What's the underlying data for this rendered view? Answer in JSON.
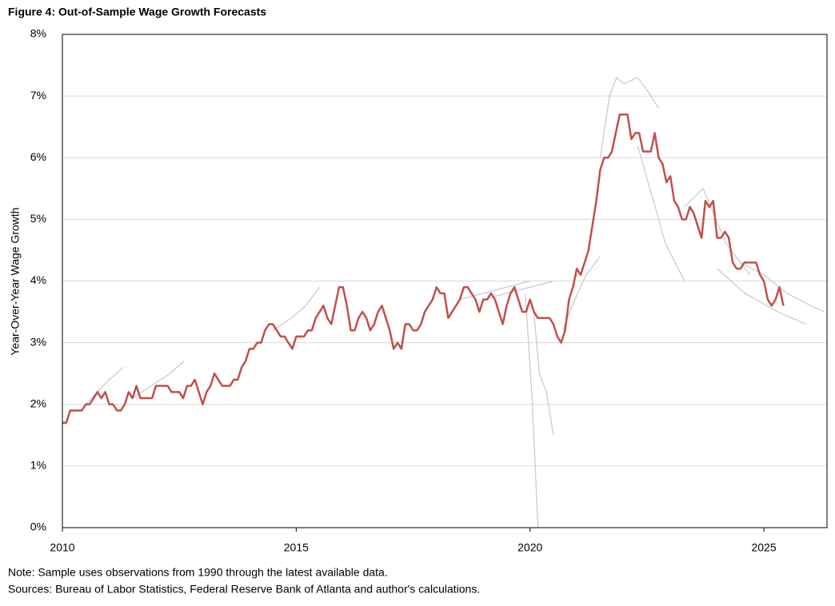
{
  "chart_data": {
    "type": "line",
    "title": "Figure 4: Out-of-Sample Wage Growth Forecasts",
    "y_label": "Year-Over-Year Wage Growth",
    "notes": [
      "Note: Sample uses observations from 1990 through the latest available data.",
      "Sources: Bureau of Labor Statistics, Federal Reserve Bank of Atlanta and author's calculations."
    ],
    "xlim": [
      2010,
      2026.35
    ],
    "xticks": [
      2010,
      2015,
      2020,
      2025
    ],
    "ylim": [
      0,
      8
    ],
    "yticks": [
      {
        "value": 0,
        "label": "0%"
      },
      {
        "value": 1,
        "label": "1%"
      },
      {
        "value": 2,
        "label": "2%"
      },
      {
        "value": 3,
        "label": "3%"
      },
      {
        "value": 4,
        "label": "4%"
      },
      {
        "value": 5,
        "label": "5%"
      },
      {
        "value": 6,
        "label": "6%"
      },
      {
        "value": 7,
        "label": "7%"
      },
      {
        "value": 8,
        "label": "8%"
      }
    ],
    "grid": true,
    "series": [
      {
        "color": "#c8c8c8",
        "x": [
          2010.5,
          2010.75,
          2011.0,
          2011.3
        ],
        "values": [
          2.0,
          2.2,
          2.4,
          2.6
        ]
      },
      {
        "color": "#c8c8c8",
        "x": [
          2011.5,
          2011.9,
          2012.3,
          2012.6
        ],
        "values": [
          2.1,
          2.3,
          2.5,
          2.7
        ]
      },
      {
        "color": "#c8c8c8",
        "x": [
          2014.5,
          2014.9,
          2015.2,
          2015.5
        ],
        "values": [
          3.2,
          3.4,
          3.6,
          3.9
        ]
      },
      {
        "color": "#c8c8c8",
        "x": [
          2018.5,
          2019.0,
          2019.5,
          2020.0
        ],
        "values": [
          3.7,
          3.8,
          3.9,
          4.0
        ]
      },
      {
        "color": "#c8c8c8",
        "x": [
          2019.0,
          2019.5,
          2020.0,
          2020.5
        ],
        "values": [
          3.7,
          3.8,
          3.9,
          4.0
        ]
      },
      {
        "color": "#c8c8c8",
        "x": [
          2019.9,
          2020.05,
          2020.17
        ],
        "values": [
          3.8,
          2.0,
          0
        ]
      },
      {
        "color": "#c8c8c8",
        "x": [
          2020.08,
          2020.2,
          2020.35,
          2020.5
        ],
        "values": [
          3.5,
          2.5,
          2.2,
          1.5
        ]
      },
      {
        "color": "#c8c8c8",
        "x": [
          2020.7,
          2020.9,
          2021.2,
          2021.5
        ],
        "values": [
          3.2,
          3.6,
          4.1,
          4.4
        ]
      },
      {
        "color": "#c8c8c8",
        "x": [
          2021.5,
          2021.7,
          2021.85,
          2022.0,
          2022.3,
          2022.5,
          2022.75
        ],
        "values": [
          6.0,
          7.0,
          7.3,
          7.2,
          7.3,
          7.1,
          6.8
        ]
      },
      {
        "color": "#c8c8c8",
        "x": [
          2022.3,
          2022.6,
          2022.9,
          2023.3
        ],
        "values": [
          6.2,
          5.4,
          4.6,
          4.0
        ]
      },
      {
        "color": "#c8c8c8",
        "x": [
          2023.3,
          2023.7,
          2024.2,
          2024.7
        ],
        "values": [
          5.2,
          5.5,
          4.6,
          4.1
        ]
      },
      {
        "color": "#c8c8c8",
        "x": [
          2024.5,
          2025.0,
          2025.5,
          2026.0,
          2026.3
        ],
        "values": [
          4.3,
          4.1,
          3.8,
          3.6,
          3.5
        ]
      },
      {
        "color": "#c8c8c8",
        "x": [
          2024.0,
          2024.6,
          2025.3,
          2025.9
        ],
        "values": [
          4.2,
          3.8,
          3.5,
          3.3
        ]
      },
      {
        "color": "#c0504d",
        "x": [
          2010,
          2010.083,
          2010.167,
          2010.25,
          2010.333,
          2010.417,
          2010.5,
          2010.583,
          2010.667,
          2010.75,
          2010.833,
          2010.917,
          2011,
          2011.083,
          2011.167,
          2011.25,
          2011.333,
          2011.417,
          2011.5,
          2011.583,
          2011.667,
          2011.75,
          2011.833,
          2011.917,
          2012,
          2012.083,
          2012.167,
          2012.25,
          2012.333,
          2012.417,
          2012.5,
          2012.583,
          2012.667,
          2012.75,
          2012.833,
          2012.917,
          2013,
          2013.083,
          2013.167,
          2013.25,
          2013.333,
          2013.417,
          2013.5,
          2013.583,
          2013.667,
          2013.75,
          2013.833,
          2013.917,
          2014,
          2014.083,
          2014.167,
          2014.25,
          2014.333,
          2014.417,
          2014.5,
          2014.583,
          2014.667,
          2014.75,
          2014.833,
          2014.917,
          2015,
          2015.083,
          2015.167,
          2015.25,
          2015.333,
          2015.417,
          2015.5,
          2015.583,
          2015.667,
          2015.75,
          2015.833,
          2015.917,
          2016,
          2016.083,
          2016.167,
          2016.25,
          2016.333,
          2016.417,
          2016.5,
          2016.583,
          2016.667,
          2016.75,
          2016.833,
          2016.917,
          2017,
          2017.083,
          2017.167,
          2017.25,
          2017.333,
          2017.417,
          2017.5,
          2017.583,
          2017.667,
          2017.75,
          2017.833,
          2017.917,
          2018,
          2018.083,
          2018.167,
          2018.25,
          2018.333,
          2018.417,
          2018.5,
          2018.583,
          2018.667,
          2018.75,
          2018.833,
          2018.917,
          2019,
          2019.083,
          2019.167,
          2019.25,
          2019.333,
          2019.417,
          2019.5,
          2019.583,
          2019.667,
          2019.75,
          2019.833,
          2019.917,
          2020,
          2020.083,
          2020.167,
          2020.25,
          2020.333,
          2020.417,
          2020.5,
          2020.583,
          2020.667,
          2020.75,
          2020.833,
          2020.917,
          2021,
          2021.083,
          2021.167,
          2021.25,
          2021.333,
          2021.417,
          2021.5,
          2021.583,
          2021.667,
          2021.75,
          2021.833,
          2021.917,
          2022,
          2022.083,
          2022.167,
          2022.25,
          2022.333,
          2022.417,
          2022.5,
          2022.583,
          2022.667,
          2022.75,
          2022.833,
          2022.917,
          2023,
          2023.083,
          2023.167,
          2023.25,
          2023.333,
          2023.417,
          2023.5,
          2023.583,
          2023.667,
          2023.75,
          2023.833,
          2023.917,
          2024,
          2024.083,
          2024.167,
          2024.25,
          2024.333,
          2024.417,
          2024.5,
          2024.583,
          2024.667,
          2024.75,
          2024.833,
          2024.917,
          2025,
          2025.083,
          2025.167,
          2025.25,
          2025.333,
          2025.417
        ],
        "values": [
          1.7,
          1.7,
          1.9,
          1.9,
          1.9,
          1.9,
          2.0,
          2.0,
          2.1,
          2.2,
          2.1,
          2.2,
          2.0,
          2.0,
          1.9,
          1.9,
          2.0,
          2.2,
          2.1,
          2.3,
          2.1,
          2.1,
          2.1,
          2.1,
          2.3,
          2.3,
          2.3,
          2.3,
          2.2,
          2.2,
          2.2,
          2.1,
          2.3,
          2.3,
          2.4,
          2.2,
          2.0,
          2.2,
          2.3,
          2.5,
          2.4,
          2.3,
          2.3,
          2.3,
          2.4,
          2.4,
          2.6,
          2.7,
          2.9,
          2.9,
          3.0,
          3.0,
          3.2,
          3.3,
          3.3,
          3.2,
          3.1,
          3.1,
          3.0,
          2.9,
          3.1,
          3.1,
          3.1,
          3.2,
          3.2,
          3.4,
          3.5,
          3.6,
          3.4,
          3.3,
          3.6,
          3.9,
          3.9,
          3.6,
          3.2,
          3.2,
          3.4,
          3.5,
          3.4,
          3.2,
          3.3,
          3.5,
          3.6,
          3.4,
          3.2,
          2.9,
          3.0,
          2.9,
          3.3,
          3.3,
          3.2,
          3.2,
          3.3,
          3.5,
          3.6,
          3.7,
          3.9,
          3.8,
          3.8,
          3.4,
          3.5,
          3.6,
          3.7,
          3.9,
          3.9,
          3.8,
          3.7,
          3.5,
          3.7,
          3.7,
          3.8,
          3.7,
          3.5,
          3.3,
          3.6,
          3.8,
          3.9,
          3.7,
          3.5,
          3.5,
          3.7,
          3.5,
          3.4,
          3.4,
          3.4,
          3.4,
          3.3,
          3.1,
          3.0,
          3.2,
          3.7,
          3.9,
          4.2,
          4.1,
          4.3,
          4.5,
          4.9,
          5.3,
          5.8,
          6.0,
          6.0,
          6.1,
          6.4,
          6.7,
          6.7,
          6.7,
          6.3,
          6.4,
          6.4,
          6.1,
          6.1,
          6.1,
          6.4,
          6.0,
          5.9,
          5.6,
          5.7,
          5.3,
          5.2,
          5.0,
          5.0,
          5.2,
          5.1,
          4.9,
          4.7,
          5.3,
          5.2,
          5.3,
          4.7,
          4.7,
          4.8,
          4.7,
          4.3,
          4.2,
          4.2,
          4.3,
          4.3,
          4.3,
          4.3,
          4.1,
          4.0,
          3.7,
          3.6,
          3.7,
          3.9,
          3.6
        ]
      }
    ]
  }
}
